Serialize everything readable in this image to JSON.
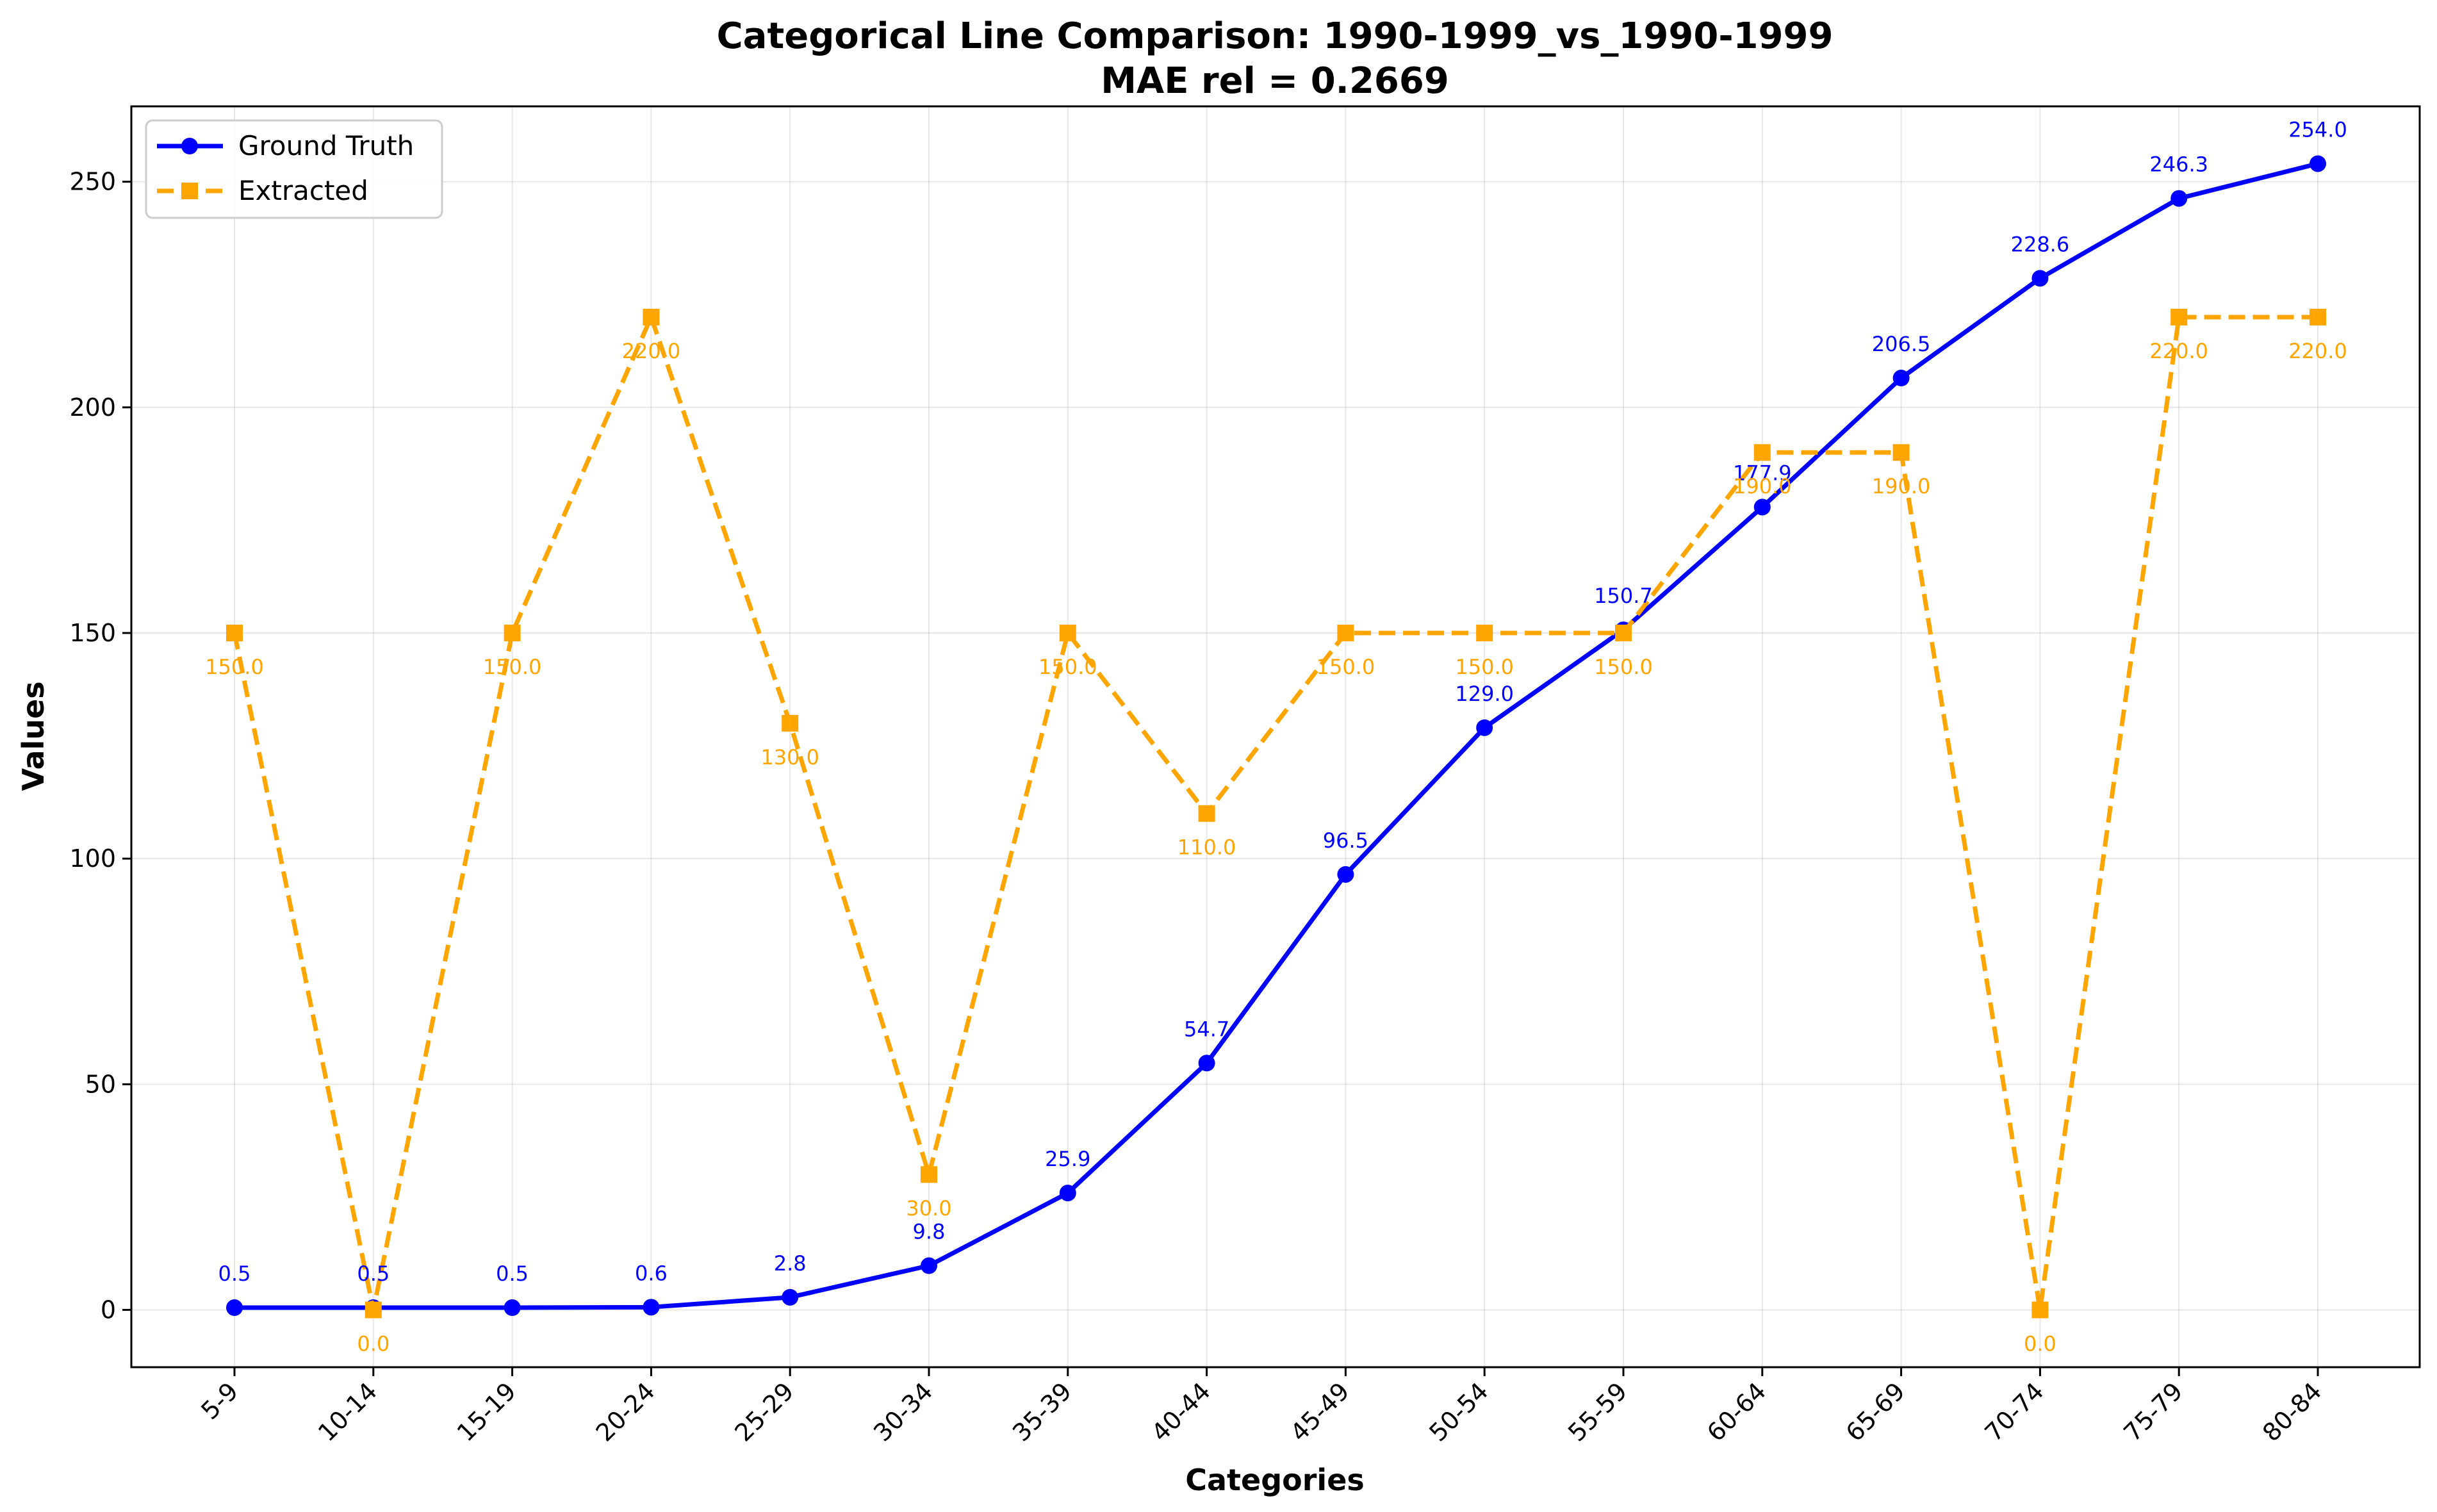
{
  "chart_data": {
    "type": "line",
    "title": "Categorical Line Comparison: 1990-1999_vs_1990-1999",
    "subtitle": "MAE rel = 0.2669",
    "xlabel": "Categories",
    "ylabel": "Values",
    "ylim": [
      -12.7,
      266.7
    ],
    "yticks": [
      0,
      50,
      100,
      150,
      200,
      250
    ],
    "grid": true,
    "legend_position": "top-left",
    "categories": [
      "5-9",
      "10-14",
      "15-19",
      "20-24",
      "25-29",
      "30-34",
      "35-39",
      "40-44",
      "45-49",
      "50-54",
      "55-59",
      "60-64",
      "65-69",
      "70-74",
      "75-79",
      "80-84"
    ],
    "series": [
      {
        "name": "Ground Truth",
        "color": "#0000ff",
        "marker": "circle",
        "linestyle": "solid",
        "values": [
          0.5,
          0.5,
          0.5,
          0.6,
          2.8,
          9.8,
          25.9,
          54.7,
          96.5,
          129.0,
          150.7,
          177.9,
          206.5,
          228.6,
          246.3,
          254.0
        ],
        "labels": [
          "0.5",
          "0.5",
          "0.5",
          "0.6",
          "2.8",
          "9.8",
          "25.9",
          "54.7",
          "96.5",
          "129.0",
          "150.7",
          "177.9",
          "206.5",
          "228.6",
          "246.3",
          "254.0"
        ]
      },
      {
        "name": "Extracted",
        "color": "#ffa500",
        "marker": "square",
        "linestyle": "dashed",
        "values": [
          150.0,
          0.0,
          150.0,
          220.0,
          130.0,
          30.0,
          150.0,
          110.0,
          150.0,
          150.0,
          150.0,
          190.0,
          190.0,
          0.0,
          220.0,
          220.0
        ],
        "labels": [
          "150.0",
          "0.0",
          "150.0",
          "220.0",
          "130.0",
          "30.0",
          "150.0",
          "110.0",
          "150.0",
          "150.0",
          "150.0",
          "190.0",
          "190.0",
          "0.0",
          "220.0",
          "220.0"
        ]
      }
    ]
  }
}
